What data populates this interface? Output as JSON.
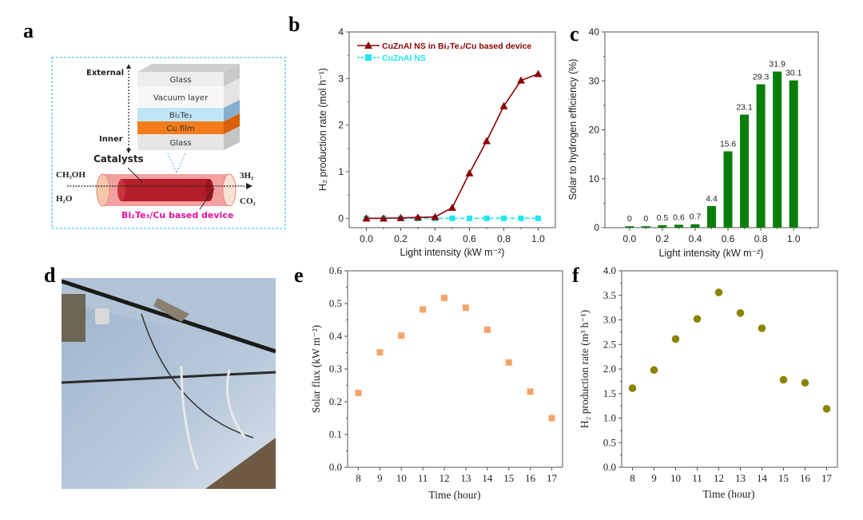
{
  "panels": {
    "a": {
      "label": "a",
      "diagram": {
        "direction_top": "External",
        "direction_bottom": "Inner",
        "layers": [
          {
            "name": "Glass",
            "color": "#ededed",
            "side": "#c9c9c9"
          },
          {
            "name": "Vacuum layer",
            "color": "#f7f7f7",
            "side": "#e4e4e4"
          },
          {
            "name": "Bi₂Te₃",
            "color": "#bfe6f7",
            "side": "#86aecf"
          },
          {
            "name": "Cu film",
            "color": "#f47c1a",
            "side": "#d85f0a"
          },
          {
            "name": "Glass",
            "color": "#e6e6e6",
            "side": "#c4c4c4"
          }
        ],
        "catalysts_label": "Catalysts",
        "inputs": [
          "CH₃OH",
          "H₂O"
        ],
        "outputs": [
          "3H₂",
          "CO₂"
        ],
        "device_label": "Bi₂Te₃/Cu based device",
        "device_label_color": "#e0119b",
        "border_color": "#4fc8ee"
      }
    },
    "b": {
      "label": "b"
    },
    "c": {
      "label": "c"
    },
    "d": {
      "label": "d",
      "photo_description": "Parabolic trough solar concentrator with mirror panels"
    },
    "e": {
      "label": "e"
    },
    "f": {
      "label": "f"
    }
  },
  "chart_data": [
    {
      "id": "b",
      "type": "line",
      "title": "",
      "xlabel": "Light intensity (kW m⁻²)",
      "ylabel": "H₂ production rate (mol h⁻¹)",
      "xlim": [
        -0.1,
        1.1
      ],
      "ylim": [
        -0.2,
        4
      ],
      "xticks": [
        0.0,
        0.2,
        0.4,
        0.6,
        0.8,
        1.0
      ],
      "xtick_labels": [
        "0.0",
        "0.2",
        "0.4",
        "0.6",
        "0.8",
        "1.0"
      ],
      "yticks": [
        0,
        1,
        2,
        3,
        4
      ],
      "ytick_labels": [
        "0",
        "1",
        "2",
        "3",
        "4"
      ],
      "legend_position": "top-left",
      "x": [
        0.0,
        0.1,
        0.2,
        0.3,
        0.4,
        0.5,
        0.6,
        0.7,
        0.8,
        0.9,
        1.0
      ],
      "series": [
        {
          "name": "CuZnAl NS in Bi₂Te₃/Cu based device",
          "color": "#8b0000",
          "marker": "triangle",
          "values": [
            0.0,
            0.0,
            0.01,
            0.02,
            0.03,
            0.23,
            0.97,
            1.66,
            2.41,
            2.96,
            3.1
          ]
        },
        {
          "name": "CuZnAl NS",
          "color": "#1ee6ee",
          "marker": "square",
          "values": [
            0,
            0,
            0,
            0,
            0,
            0,
            0,
            0,
            0,
            0,
            0
          ]
        }
      ]
    },
    {
      "id": "c",
      "type": "bar",
      "title": "",
      "xlabel": "Light intensity (kW m⁻²)",
      "ylabel": "Solar to hydrogen efficiency (%)",
      "xlim": [
        -0.15,
        1.15
      ],
      "ylim": [
        0,
        40
      ],
      "xticks": [
        0.0,
        0.2,
        0.4,
        0.6,
        0.8,
        1.0
      ],
      "xtick_labels": [
        "0.0",
        "0.2",
        "0.4",
        "0.6",
        "0.8",
        "1.0"
      ],
      "yticks": [
        0,
        10,
        20,
        30,
        40
      ],
      "ytick_labels": [
        "0",
        "10",
        "20",
        "30",
        "40"
      ],
      "bar_color": "#0a7d0a",
      "categories": [
        0.0,
        0.1,
        0.2,
        0.3,
        0.4,
        0.5,
        0.6,
        0.7,
        0.8,
        0.9,
        1.0
      ],
      "values": [
        0,
        0,
        0.5,
        0.6,
        0.7,
        4.4,
        15.6,
        23.1,
        29.3,
        31.9,
        30.1
      ],
      "data_labels": [
        "0",
        "0",
        "0.5",
        "0.6",
        "0.7",
        "4.4",
        "15.6",
        "23.1",
        "29.3",
        "31.9",
        "30.1"
      ]
    },
    {
      "id": "e",
      "type": "scatter",
      "title": "",
      "xlabel": "Time (hour)",
      "ylabel": "Solar flux (kW m⁻²)",
      "xlim": [
        7.5,
        17.5
      ],
      "ylim": [
        0,
        0.6
      ],
      "xticks": [
        8,
        9,
        10,
        11,
        12,
        13,
        14,
        15,
        16,
        17
      ],
      "yticks": [
        0.0,
        0.1,
        0.2,
        0.3,
        0.4,
        0.5,
        0.6
      ],
      "ytick_labels": [
        "0.0",
        "0.1",
        "0.2",
        "0.3",
        "0.4",
        "0.5",
        "0.6"
      ],
      "marker": "square",
      "color": "#f5a46a",
      "x": [
        8,
        9,
        10,
        11,
        12,
        13,
        14,
        15,
        16,
        17
      ],
      "values": [
        0.227,
        0.351,
        0.402,
        0.482,
        0.517,
        0.487,
        0.42,
        0.32,
        0.231,
        0.15
      ]
    },
    {
      "id": "f",
      "type": "scatter",
      "title": "",
      "xlabel": "Time (hour)",
      "ylabel": "H₂ production rate (m³ h⁻¹)",
      "xlim": [
        7.5,
        17.5
      ],
      "ylim": [
        0,
        4.0
      ],
      "xticks": [
        8,
        9,
        10,
        11,
        12,
        13,
        14,
        15,
        16,
        17
      ],
      "yticks": [
        0.0,
        0.5,
        1.0,
        1.5,
        2.0,
        2.5,
        3.0,
        3.5,
        4.0
      ],
      "ytick_labels": [
        "0.0",
        "0.5",
        "1.0",
        "1.5",
        "2.0",
        "2.5",
        "3.0",
        "3.5",
        "4.0"
      ],
      "marker": "circle",
      "color": "#8a8400",
      "x": [
        8,
        9,
        10,
        11,
        12,
        13,
        14,
        15,
        16,
        17
      ],
      "values": [
        1.61,
        1.98,
        2.61,
        3.02,
        3.56,
        3.14,
        2.83,
        1.78,
        1.72,
        1.19
      ]
    }
  ]
}
